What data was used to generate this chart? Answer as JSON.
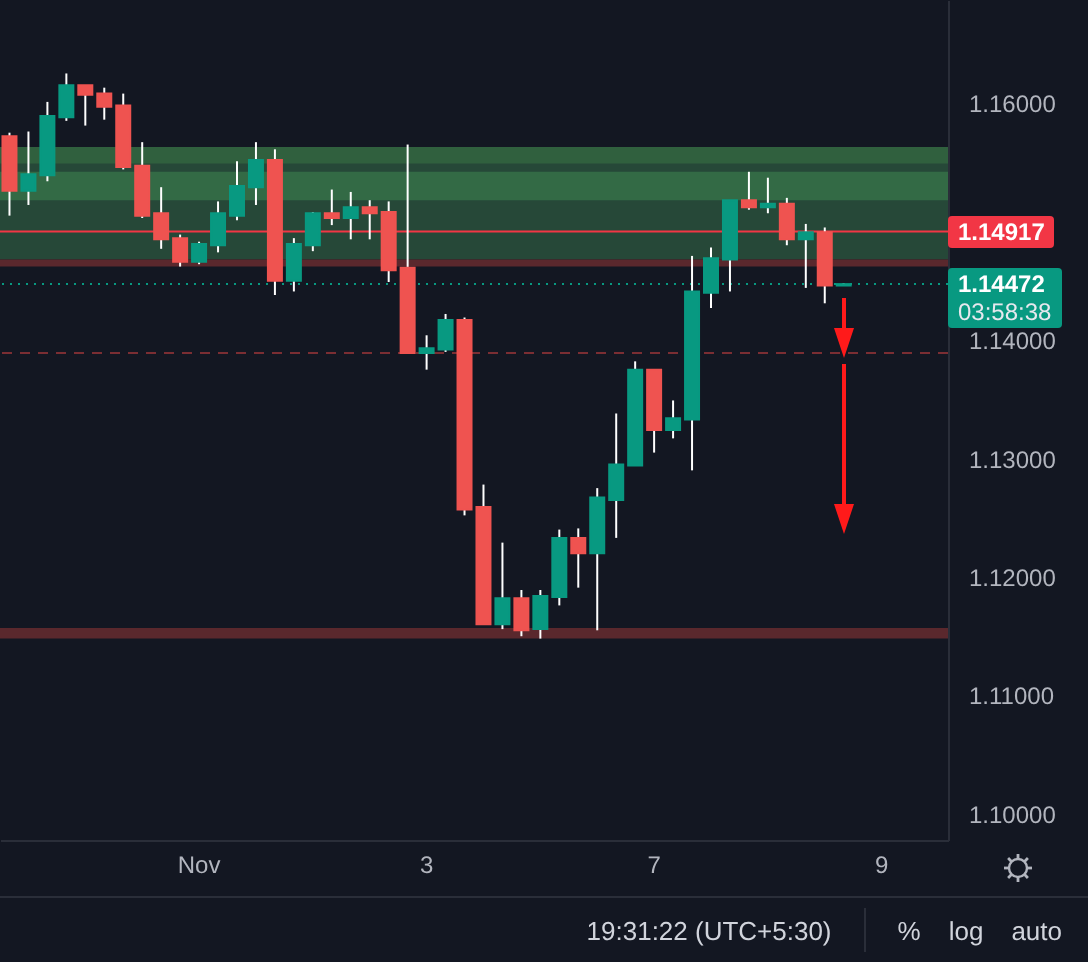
{
  "chart_data": {
    "type": "candlestick",
    "categories": [
      null,
      null,
      null,
      null,
      null,
      null,
      null,
      null,
      null,
      null,
      "Nov",
      null,
      null,
      null,
      null,
      null,
      null,
      null,
      null,
      null,
      null,
      null,
      "3",
      null,
      null,
      null,
      null,
      null,
      null,
      null,
      null,
      null,
      null,
      null,
      "7",
      null,
      null,
      null,
      null,
      null,
      null,
      null,
      null,
      null,
      null,
      null,
      "9",
      null,
      null,
      null
    ],
    "ohlc": [
      [
        1.1572,
        1.1575,
        1.1505,
        1.1526
      ],
      [
        1.1526,
        1.1576,
        1.1514,
        1.154
      ],
      [
        1.1539,
        1.1601,
        1.1534,
        1.1589
      ],
      [
        1.1588,
        1.1625,
        1.1585,
        1.1615
      ],
      [
        1.1615,
        1.1615,
        1.1581,
        1.1607
      ],
      [
        1.1608,
        1.1613,
        1.1586,
        1.1597
      ],
      [
        1.1598,
        1.1608,
        1.1544,
        1.1546
      ],
      [
        1.1547,
        1.1567,
        1.1503,
        1.1505
      ],
      [
        1.1507,
        1.1529,
        1.1477,
        1.1485
      ],
      [
        1.1486,
        1.1489,
        1.1462,
        1.1466
      ],
      [
        1.1466,
        1.1483,
        1.1464,
        1.1481
      ],
      [
        1.148,
        1.1517,
        1.1474,
        1.1507
      ],
      [
        1.1505,
        1.1551,
        1.1501,
        1.153
      ],
      [
        1.1529,
        1.1567,
        1.1514,
        1.1552
      ],
      [
        1.1552,
        1.1561,
        1.1438,
        1.145
      ],
      [
        1.145,
        1.1486,
        1.1441,
        1.1481
      ],
      [
        1.148,
        1.1508,
        1.1475,
        1.1507
      ],
      [
        1.1507,
        1.1527,
        1.1497,
        1.1503
      ],
      [
        1.1503,
        1.1525,
        1.1485,
        1.1512
      ],
      [
        1.1512,
        1.1518,
        1.1485,
        1.1507
      ],
      [
        1.1508,
        1.1517,
        1.1449,
        1.1459
      ],
      [
        1.1461,
        1.1565,
        1.1389,
        1.1389
      ],
      [
        1.1389,
        1.1404,
        1.1375,
        1.1393
      ],
      [
        1.1392,
        1.1422,
        1.139,
        1.1417
      ],
      [
        1.1417,
        1.1419,
        1.1252,
        1.1257
      ],
      [
        1.1259,
        1.1278,
        1.116,
        1.116
      ],
      [
        1.116,
        1.1229,
        1.1156,
        1.1182
      ],
      [
        1.1182,
        1.1189,
        1.115,
        1.1155
      ],
      [
        1.1156,
        1.1189,
        1.1148,
        1.1184
      ],
      [
        1.1183,
        1.124,
        1.1176,
        1.1233
      ],
      [
        1.1233,
        1.1241,
        1.1191,
        1.122
      ],
      [
        1.122,
        1.1275,
        1.1155,
        1.1267
      ],
      [
        1.1265,
        1.1338,
        1.1233,
        1.1295
      ],
      [
        1.1294,
        1.1382,
        1.1294,
        1.1375
      ],
      [
        1.1375,
        1.1375,
        1.1305,
        1.1324
      ],
      [
        1.1324,
        1.1349,
        1.1317,
        1.1334
      ],
      [
        1.1333,
        1.1471,
        1.129,
        1.1441
      ],
      [
        1.144,
        1.1478,
        1.1427,
        1.1469
      ],
      [
        1.1468,
        1.1518,
        1.1441,
        1.1518
      ],
      [
        1.1518,
        1.1542,
        1.151,
        1.1512
      ],
      [
        1.1512,
        1.1537,
        1.1507,
        1.1515
      ],
      [
        1.1515,
        1.152,
        1.148,
        1.1485
      ],
      [
        1.1485,
        1.1498,
        1.1444,
        1.1491
      ],
      [
        1.1491,
        1.1495,
        1.1431,
        1.1446
      ],
      [
        1.1446,
        1.1448,
        1.1446,
        1.14472
      ],
      null,
      null,
      null,
      null,
      null
    ],
    "colors": [
      "#ef5350",
      "#089981",
      "#089981",
      "#089981",
      "#ef5350",
      "#ef5350",
      "#ef5350",
      "#ef5350",
      "#ef5350",
      "#ef5350",
      "#089981",
      "#089981",
      "#089981",
      "#089981",
      "#ef5350",
      "#089981",
      "#089981",
      "#ef5350",
      "#089981",
      "#ef5350",
      "#ef5350",
      "#ef5350",
      "#089981",
      "#089981",
      "#ef5350",
      "#ef5350",
      "#089981",
      "#ef5350",
      "#089981",
      "#089981",
      "#ef5350",
      "#089981",
      "#089981",
      "#089981",
      "#ef5350",
      "#089981",
      "#089981",
      "#089981",
      "#089981",
      "#ef5350",
      "#089981",
      "#ef5350",
      "#089981",
      "#ef5350",
      "#089981",
      null,
      null,
      null,
      null,
      null
    ],
    "color": "#ffffff",
    "ylim": [
      1.0978,
      1.1687
    ],
    "yticks": [
      {
        "value": 1.1,
        "label": "1.10000"
      },
      {
        "value": 1.11,
        "label": "1.11000"
      },
      {
        "value": 1.12,
        "label": "1.12000"
      },
      {
        "value": 1.13,
        "label": "1.13000"
      },
      {
        "value": 1.14,
        "label": "1.14000"
      },
      {
        "value": 1.16,
        "label": "1.16000"
      }
    ],
    "bands": [
      {
        "axis": "y",
        "from": 1.1468,
        "to": 1.1563,
        "color": "#264838"
      },
      {
        "axis": "y",
        "from": 1.1549,
        "to": 1.1563,
        "color": "#30603e"
      },
      {
        "axis": "y",
        "from": 1.1518,
        "to": 1.1542,
        "color": "#336a45"
      },
      {
        "axis": "y",
        "from": 1.1462,
        "to": 1.1468,
        "color": "#5a282d"
      },
      {
        "axis": "y",
        "from": 1.1148,
        "to": 1.1157,
        "color": "#5a282d"
      }
    ],
    "ref_lines": [
      {
        "axis": "y",
        "value": 1.1389,
        "color": "#7b2e33",
        "line_style": "dashed"
      },
      {
        "axis": "y",
        "value": 1.14917,
        "label": "1.14917",
        "color": "#f23645"
      },
      {
        "axis": "y",
        "value": 1.14472,
        "label": "1.14472\n03:58:38",
        "color": "#089981",
        "line_style": "dotted"
      }
    ],
    "annotations": [
      "19:31:22 (UTC+5:30)",
      "%",
      "log",
      "auto"
    ]
  }
}
